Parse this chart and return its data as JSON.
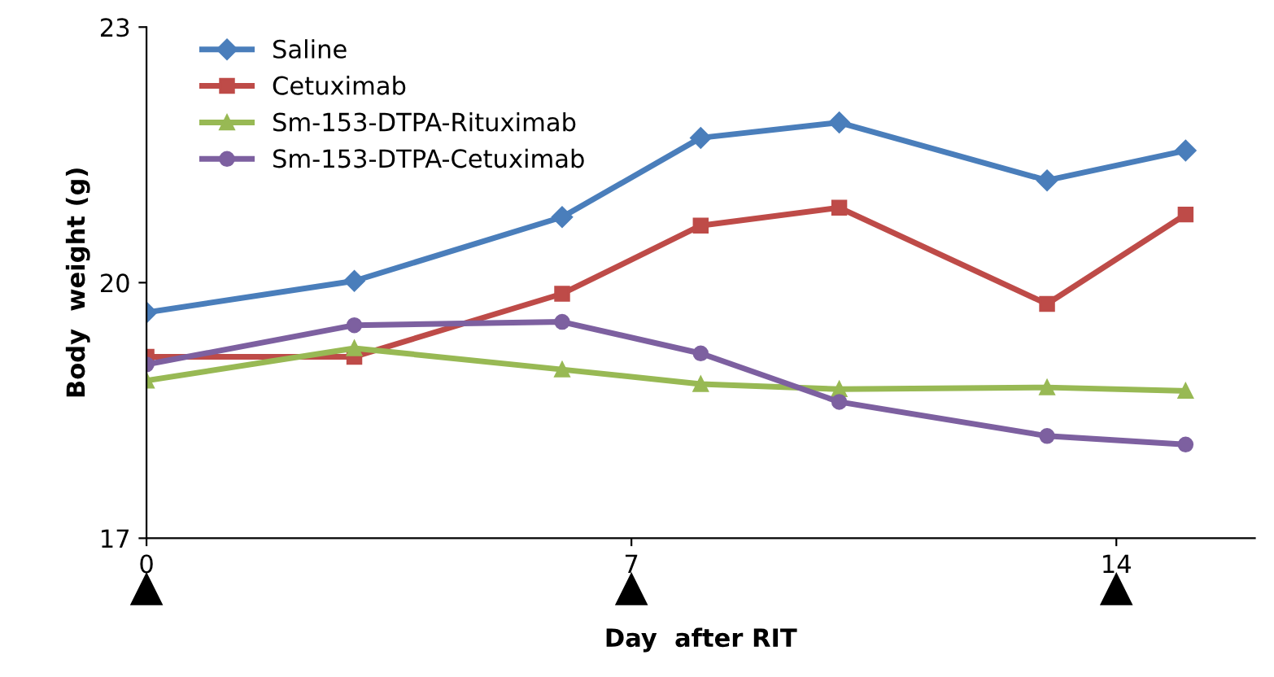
{
  "chart_data": {
    "type": "line",
    "xlabel": "Day  after RIT",
    "ylabel": "Body  weight (g)",
    "x": [
      0,
      3,
      6,
      8,
      10,
      13,
      15
    ],
    "xlim": [
      0,
      16
    ],
    "xticks": [
      0,
      7,
      14
    ],
    "ylim": [
      17,
      23
    ],
    "yticks": [
      17,
      20,
      23
    ],
    "grid": false,
    "legend": "top left",
    "series": [
      {
        "name": "Saline",
        "color": "#4a7ebb",
        "marker": "diamond",
        "values": [
          19.65,
          20.02,
          20.77,
          21.7,
          21.88,
          21.2,
          21.55
        ]
      },
      {
        "name": "Cetuximab",
        "color": "#be4b48",
        "marker": "square",
        "values": [
          19.13,
          19.13,
          19.87,
          20.67,
          20.88,
          19.75,
          20.8
        ]
      },
      {
        "name": "Sm-153-DTPA-Rituximab",
        "color": "#98b954",
        "marker": "triangle",
        "values": [
          18.85,
          19.23,
          18.98,
          18.81,
          18.75,
          18.77,
          18.73
        ]
      },
      {
        "name": "Sm-153-DTPA-Cetuximab",
        "color": "#7d60a0",
        "marker": "circle",
        "values": [
          19.04,
          19.5,
          19.54,
          19.17,
          18.6,
          18.2,
          18.1
        ]
      }
    ]
  }
}
